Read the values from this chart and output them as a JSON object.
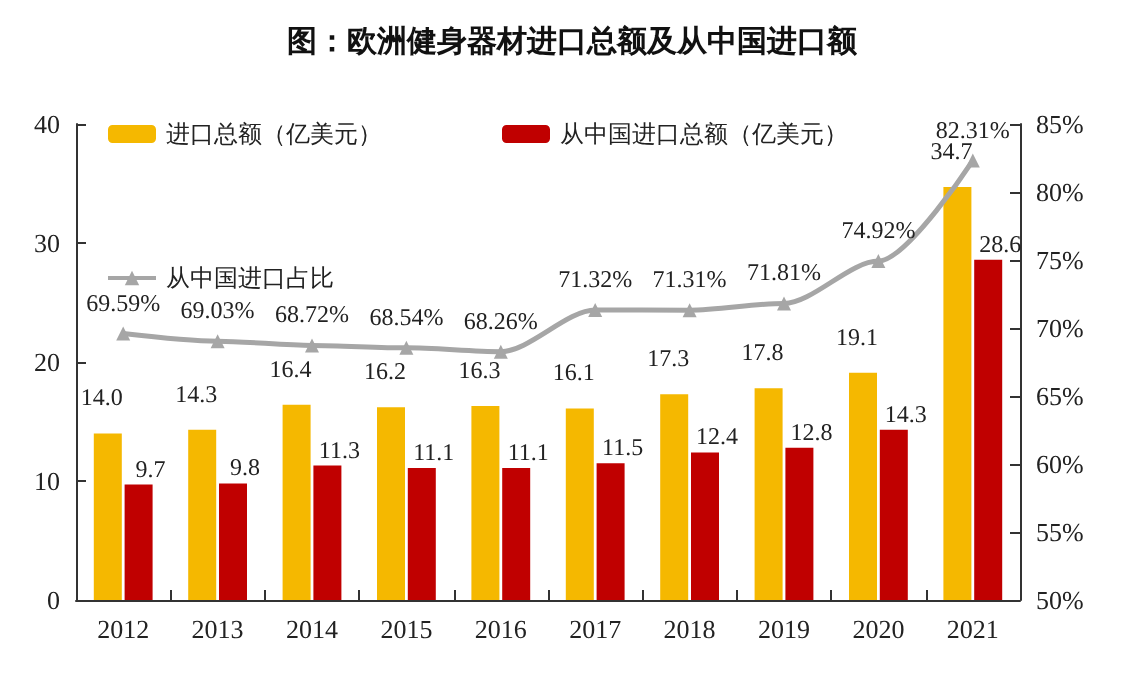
{
  "chart_data": {
    "type": "bar",
    "title": "图：欧洲健身器材进口总额及从中国进口额",
    "categories": [
      "2012",
      "2013",
      "2014",
      "2015",
      "2016",
      "2017",
      "2018",
      "2019",
      "2020",
      "2021"
    ],
    "series": [
      {
        "name": "进口总额（亿美元）",
        "color": "#f5b800",
        "values": [
          14.0,
          14.3,
          16.4,
          16.2,
          16.3,
          16.1,
          17.3,
          17.8,
          19.1,
          34.7
        ],
        "value_labels": [
          "14.0",
          "14.3",
          "16.4",
          "16.2",
          "16.3",
          "16.1",
          "17.3",
          "17.8",
          "19.1",
          "34.7"
        ]
      },
      {
        "name": "从中国进口总额（亿美元）",
        "color": "#c00000",
        "values": [
          9.7,
          9.8,
          11.3,
          11.1,
          11.1,
          11.5,
          12.4,
          12.8,
          14.3,
          28.6
        ],
        "value_labels": [
          "9.7",
          "9.8",
          "11.3",
          "11.1",
          "11.1",
          "11.5",
          "12.4",
          "12.8",
          "14.3",
          "28.6"
        ]
      },
      {
        "name": "从中国进口占比",
        "type": "line",
        "axis": "y2",
        "color": "#a6a6a6",
        "marker": "triangle",
        "values": [
          69.59,
          69.03,
          68.72,
          68.54,
          68.26,
          71.32,
          71.31,
          71.81,
          74.92,
          82.31
        ],
        "value_labels": [
          "69.59%",
          "69.03%",
          "68.72%",
          "68.54%",
          "68.26%",
          "71.32%",
          "71.31%",
          "71.81%",
          "74.92%",
          "82.31%"
        ]
      }
    ],
    "ylim": [
      0,
      40
    ],
    "yticks": [
      0,
      10,
      20,
      30,
      40
    ],
    "y2lim": [
      50,
      85
    ],
    "y2ticks": [
      {
        "value": 50,
        "label": "50%"
      },
      {
        "value": 55,
        "label": "55%"
      },
      {
        "value": 60,
        "label": "60%"
      },
      {
        "value": 65,
        "label": "65%"
      },
      {
        "value": 70,
        "label": "70%"
      },
      {
        "value": 75,
        "label": "75%"
      },
      {
        "value": 80,
        "label": "80%"
      },
      {
        "value": 85,
        "label": "85%"
      }
    ],
    "legend": "top left",
    "grid": false
  }
}
